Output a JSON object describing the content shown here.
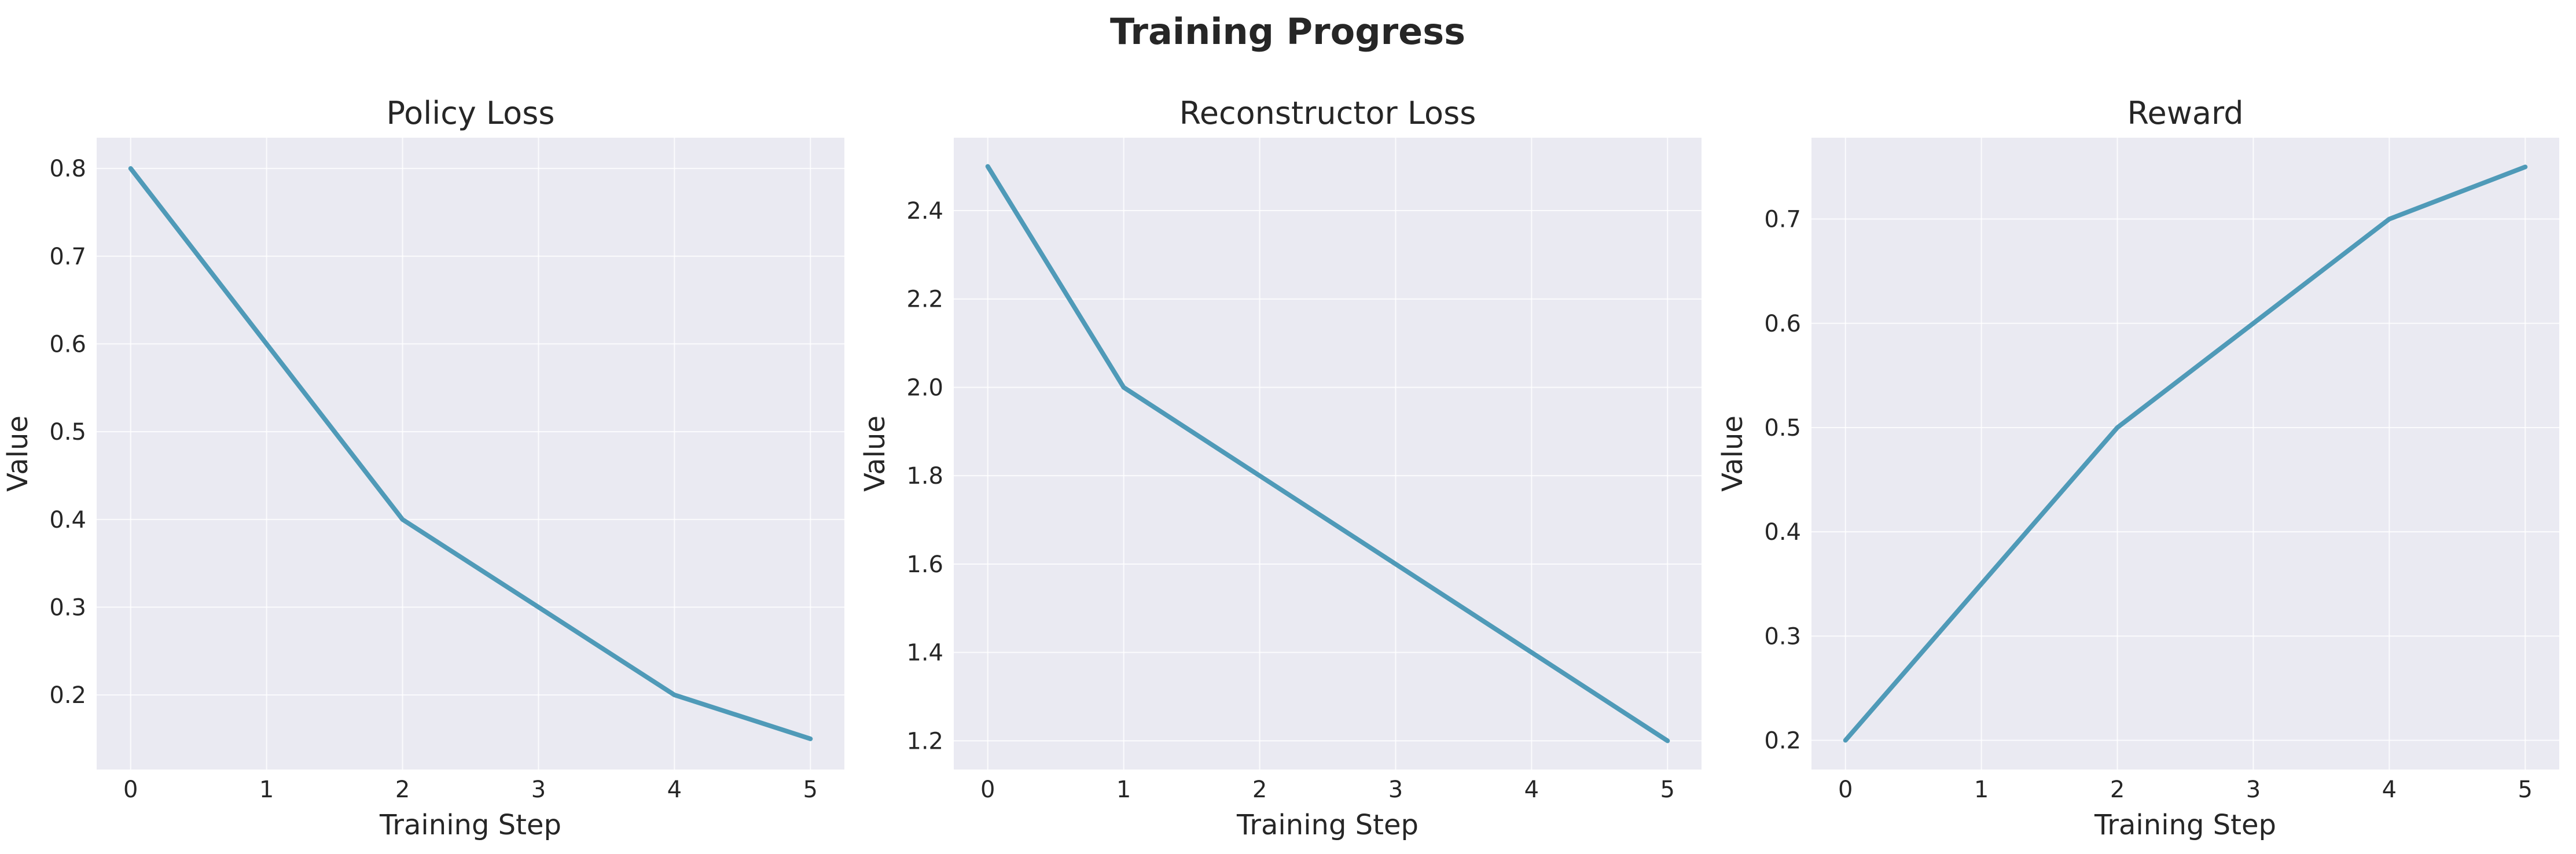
{
  "figure": {
    "title": "Training Progress"
  },
  "chart_data": [
    {
      "type": "line",
      "title": "Policy Loss",
      "xlabel": "Training Step",
      "ylabel": "Value",
      "x": [
        0,
        1,
        2,
        3,
        4,
        5
      ],
      "xlim": [
        -0.25,
        5.25
      ],
      "ylim": [
        0.115,
        0.835
      ],
      "xticks": [
        0,
        1,
        2,
        3,
        4,
        5
      ],
      "yticks": [
        0.2,
        0.3,
        0.4,
        0.5,
        0.6,
        0.7,
        0.8
      ],
      "grid": true,
      "series": [
        {
          "values": [
            0.8,
            0.6,
            0.4,
            0.3,
            0.2,
            0.15
          ],
          "color": "#4f9ab8"
        }
      ]
    },
    {
      "type": "line",
      "title": "Reconstructor Loss",
      "xlabel": "Training Step",
      "ylabel": "Value",
      "x": [
        0,
        1,
        2,
        3,
        4,
        5
      ],
      "xlim": [
        -0.25,
        5.25
      ],
      "ylim": [
        1.135,
        2.565
      ],
      "xticks": [
        0,
        1,
        2,
        3,
        4,
        5
      ],
      "yticks": [
        1.2,
        1.4,
        1.6,
        1.8,
        2.0,
        2.2,
        2.4
      ],
      "grid": true,
      "series": [
        {
          "values": [
            2.5,
            2.0,
            1.8,
            1.6,
            1.4,
            1.2
          ],
          "color": "#4f9ab8"
        }
      ]
    },
    {
      "type": "line",
      "title": "Reward",
      "xlabel": "Training Step",
      "ylabel": "Value",
      "x": [
        0,
        1,
        2,
        3,
        4,
        5
      ],
      "xlim": [
        -0.25,
        5.25
      ],
      "ylim": [
        0.172,
        0.778
      ],
      "xticks": [
        0,
        1,
        2,
        3,
        4,
        5
      ],
      "yticks": [
        0.2,
        0.3,
        0.4,
        0.5,
        0.6,
        0.7
      ],
      "grid": true,
      "series": [
        {
          "values": [
            0.2,
            0.35,
            0.5,
            0.6,
            0.7,
            0.75
          ],
          "color": "#4f9ab8"
        }
      ]
    }
  ],
  "colors": {
    "plot_background": "#eaeaf2",
    "grid": "#ffffff",
    "series": "#4f9ab8",
    "text": "#262626"
  }
}
